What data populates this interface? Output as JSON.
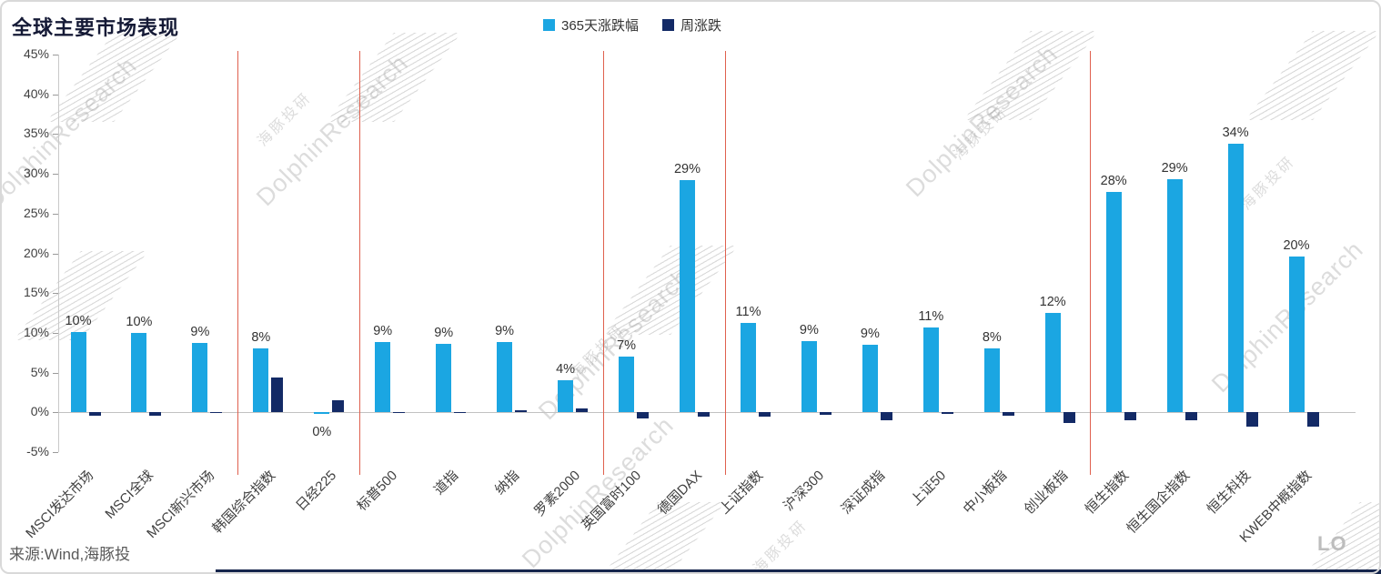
{
  "title": "全球主要市场表现",
  "legend": [
    {
      "label": "365天涨跌幅",
      "color": "#1BA6E2"
    },
    {
      "label": "周涨跌",
      "color": "#132A66"
    }
  ],
  "source": "来源:Wind,海豚投",
  "watermark": {
    "en": "DolphinResearch",
    "zh": "海豚投研",
    "logo_partial": "LO"
  },
  "chart_data": {
    "type": "bar",
    "title": "全球主要市场表现",
    "xlabel": "",
    "ylabel": "",
    "ylim": [
      -5,
      45
    ],
    "grid": false,
    "legend_position": "top-center",
    "y_tick_labels": [
      "45%",
      "40%",
      "35%",
      "30%",
      "25%",
      "20%",
      "15%",
      "10%",
      "5%",
      "0%",
      "-5%"
    ],
    "categories": [
      "MSCI发达市场",
      "MSCI全球",
      "MSCI新兴市场",
      "韩国综合指数",
      "日经225",
      "标普500",
      "道指",
      "纳指",
      "罗素2000",
      "英国富时100",
      "德国DAX",
      "上证指数",
      "沪深300",
      "深证成指",
      "上证50",
      "中小板指",
      "创业板指",
      "恒生指数",
      "恒生国企指数",
      "恒生科技",
      "KWEB中概指数"
    ],
    "series": [
      {
        "name": "365天涨跌幅",
        "color": "#1BA6E2",
        "values": [
          10.1,
          10.0,
          8.7,
          8.0,
          -0.2,
          8.8,
          8.6,
          8.9,
          4.1,
          7.0,
          29.2,
          11.2,
          9.0,
          8.5,
          10.7,
          8.0,
          12.5,
          27.7,
          29.3,
          33.8,
          19.6
        ],
        "labels": [
          "10%",
          "10%",
          "9%",
          "8%",
          "0%",
          "9%",
          "9%",
          "9%",
          "4%",
          "7%",
          "29%",
          "11%",
          "9%",
          "9%",
          "11%",
          "8%",
          "12%",
          "28%",
          "29%",
          "34%",
          "20%"
        ]
      },
      {
        "name": "周涨跌",
        "color": "#132A66",
        "values": [
          -0.4,
          -0.4,
          -0.1,
          4.4,
          1.5,
          -0.1,
          -0.1,
          0.3,
          0.5,
          -0.8,
          -0.6,
          -0.5,
          -0.3,
          -1.0,
          -0.2,
          -0.4,
          -1.4,
          -1.0,
          -1.0,
          -1.8,
          -1.8
        ]
      }
    ],
    "separators_after": [
      3,
      5,
      9,
      11,
      17
    ],
    "separator_color": "#DF604E"
  }
}
